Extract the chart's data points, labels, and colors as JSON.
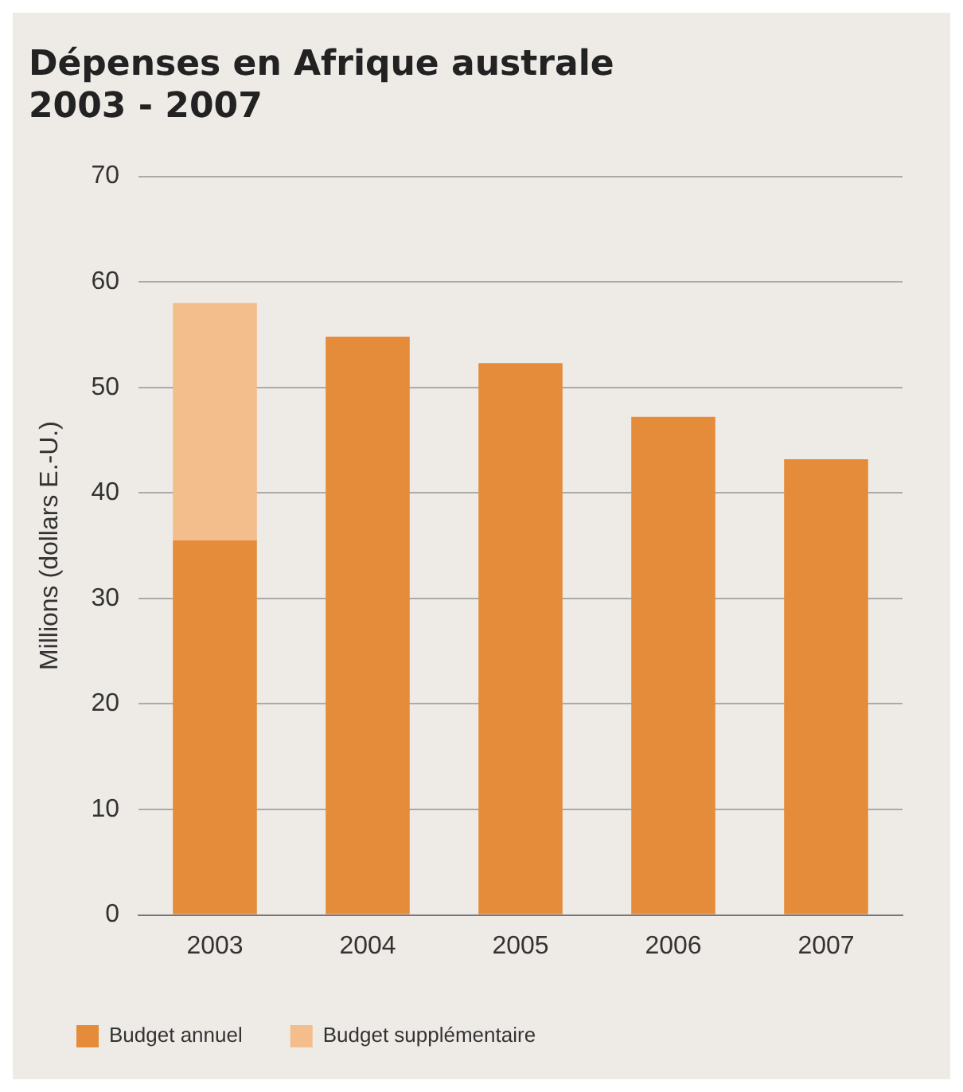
{
  "chart_data": {
    "type": "bar",
    "title": "Dépenses en Afrique australe\n2003 - 2007",
    "ylabel": "Millions (dollars E.-U.)",
    "categories": [
      "2003",
      "2004",
      "2005",
      "2006",
      "2007"
    ],
    "stacked": true,
    "series": [
      {
        "name": "Budget annuel",
        "color": "#e58c3a",
        "values": [
          35.5,
          54.8,
          52.3,
          47.2,
          43.2
        ]
      },
      {
        "name": "Budget supplémentaire",
        "color": "#f3bd8c",
        "values": [
          22.5,
          null,
          null,
          null,
          null
        ]
      }
    ],
    "ylim": [
      0,
      70
    ],
    "yticks": [
      0,
      10,
      20,
      30,
      40,
      50,
      60,
      70
    ],
    "grid": "y",
    "legend": "bottom"
  }
}
